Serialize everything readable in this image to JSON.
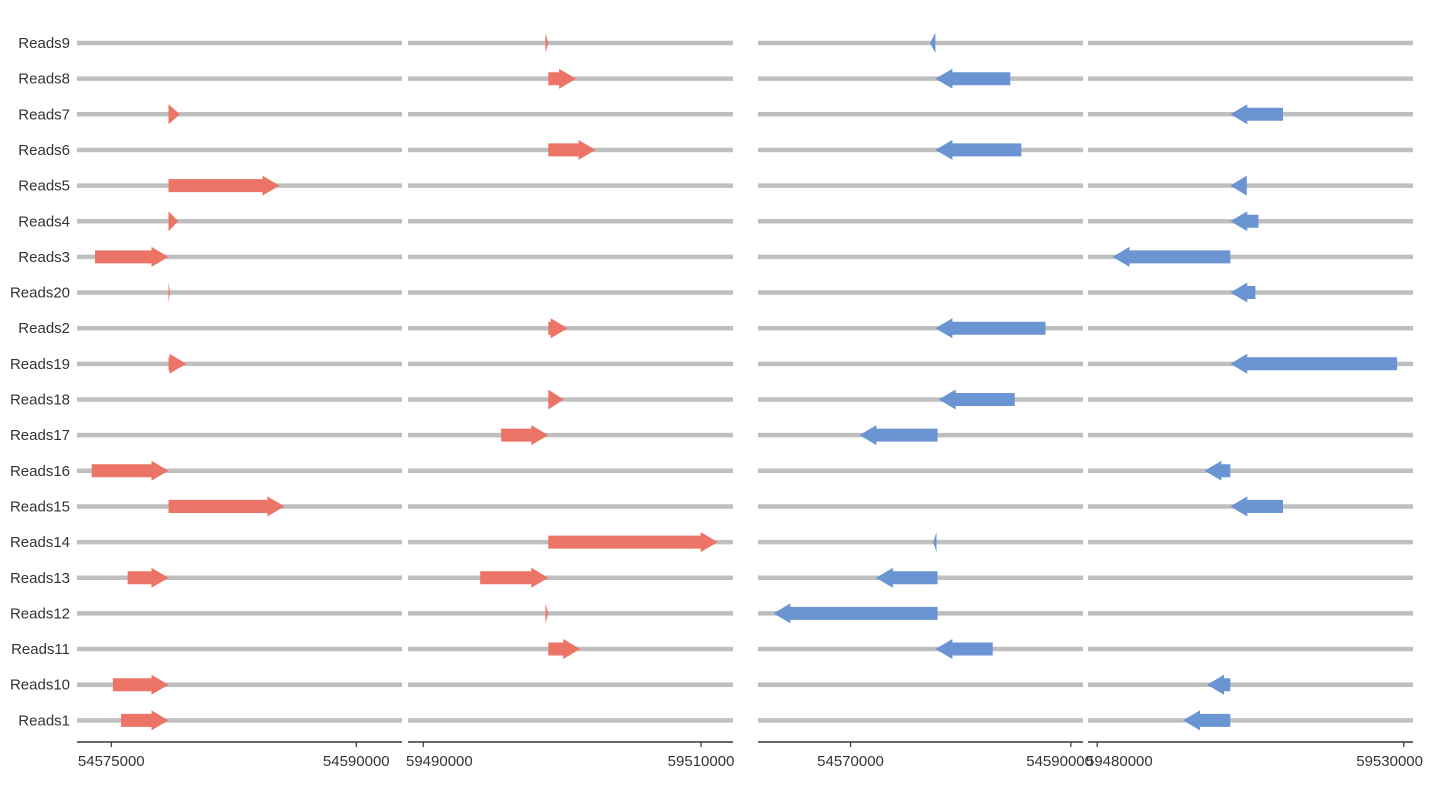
{
  "colors": {
    "forward": "#ec7467",
    "reverse": "#6a95d2",
    "track": "#bfbfbf",
    "axis": "#333333",
    "label": "#333333"
  },
  "chart_data": {
    "type": "gene-arrow",
    "reads": [
      "Reads9",
      "Reads8",
      "Reads7",
      "Reads6",
      "Reads5",
      "Reads4",
      "Reads3",
      "Reads20",
      "Reads2",
      "Reads19",
      "Reads18",
      "Reads17",
      "Reads16",
      "Reads15",
      "Reads14",
      "Reads13",
      "Reads12",
      "Reads11",
      "Reads10",
      "Reads1"
    ],
    "panels": [
      {
        "strand": "forward",
        "xlim": [
          54572900,
          54592800
        ],
        "ticks": [
          {
            "value": 54575000,
            "label": "54575000"
          },
          {
            "value": 54590000,
            "label": "54590000"
          }
        ],
        "segments": [
          {
            "read": "Reads7",
            "start": 54578500,
            "end": 54579200
          },
          {
            "read": "Reads5",
            "start": 54578500,
            "end": 54585300
          },
          {
            "read": "Reads4",
            "start": 54578500,
            "end": 54579100
          },
          {
            "read": "Reads3",
            "start": 54574000,
            "end": 54578500
          },
          {
            "read": "Reads20",
            "start": 54578500,
            "end": 54578600
          },
          {
            "read": "Reads19",
            "start": 54578500,
            "end": 54579600
          },
          {
            "read": "Reads16",
            "start": 54573800,
            "end": 54578500
          },
          {
            "read": "Reads15",
            "start": 54578500,
            "end": 54585600
          },
          {
            "read": "Reads13",
            "start": 54576000,
            "end": 54578500
          },
          {
            "read": "Reads10",
            "start": 54575100,
            "end": 54578500
          },
          {
            "read": "Reads1",
            "start": 54575600,
            "end": 54578500
          }
        ]
      },
      {
        "strand": "forward",
        "xlim": [
          59488900,
          59512300
        ],
        "ticks": [
          {
            "value": 59490000,
            "label": "59490000"
          },
          {
            "value": 59510000,
            "label": "59510000"
          }
        ],
        "segments": [
          {
            "read": "Reads9",
            "start": 59498800,
            "end": 59499000
          },
          {
            "read": "Reads8",
            "start": 59499000,
            "end": 59501000
          },
          {
            "read": "Reads6",
            "start": 59499000,
            "end": 59502400
          },
          {
            "read": "Reads2",
            "start": 59499000,
            "end": 59500400
          },
          {
            "read": "Reads18",
            "start": 59499000,
            "end": 59500100
          },
          {
            "read": "Reads17",
            "start": 59495600,
            "end": 59499000
          },
          {
            "read": "Reads14",
            "start": 59499000,
            "end": 59511200
          },
          {
            "read": "Reads13",
            "start": 59494100,
            "end": 59499000
          },
          {
            "read": "Reads12",
            "start": 59498800,
            "end": 59499000
          },
          {
            "read": "Reads11",
            "start": 59499000,
            "end": 59501300
          }
        ]
      },
      {
        "strand": "reverse",
        "xlim": [
          54561600,
          54591100
        ],
        "ticks": [
          {
            "value": 54570000,
            "label": "54570000"
          },
          {
            "value": 54590000,
            "label": "54590000"
          }
        ],
        "segments": [
          {
            "read": "Reads9",
            "start": 54577200,
            "end": 54577700
          },
          {
            "read": "Reads8",
            "start": 54577700,
            "end": 54584500
          },
          {
            "read": "Reads6",
            "start": 54577700,
            "end": 54585500
          },
          {
            "read": "Reads2",
            "start": 54577700,
            "end": 54587700
          },
          {
            "read": "Reads18",
            "start": 54578000,
            "end": 54584900
          },
          {
            "read": "Reads17",
            "start": 54570800,
            "end": 54577900
          },
          {
            "read": "Reads14",
            "start": 54577500,
            "end": 54577800
          },
          {
            "read": "Reads13",
            "start": 54572300,
            "end": 54577900
          },
          {
            "read": "Reads12",
            "start": 54563000,
            "end": 54577900
          },
          {
            "read": "Reads11",
            "start": 54577700,
            "end": 54582900
          }
        ]
      },
      {
        "strand": "reverse",
        "xlim": [
          59478500,
          59531500
        ],
        "ticks": [
          {
            "value": 59480000,
            "label": "59480000"
          },
          {
            "value": 59530000,
            "label": "59530000"
          }
        ],
        "segments": [
          {
            "read": "Reads7",
            "start": 59501700,
            "end": 59510300
          },
          {
            "read": "Reads5",
            "start": 59501700,
            "end": 59504400
          },
          {
            "read": "Reads4",
            "start": 59501700,
            "end": 59506300
          },
          {
            "read": "Reads3",
            "start": 59482500,
            "end": 59501700
          },
          {
            "read": "Reads20",
            "start": 59501700,
            "end": 59505800
          },
          {
            "read": "Reads19",
            "start": 59501700,
            "end": 59528900
          },
          {
            "read": "Reads16",
            "start": 59497500,
            "end": 59501700
          },
          {
            "read": "Reads15",
            "start": 59501700,
            "end": 59510300
          },
          {
            "read": "Reads10",
            "start": 59497900,
            "end": 59501700
          },
          {
            "read": "Reads1",
            "start": 59494000,
            "end": 59501700
          }
        ]
      }
    ]
  }
}
